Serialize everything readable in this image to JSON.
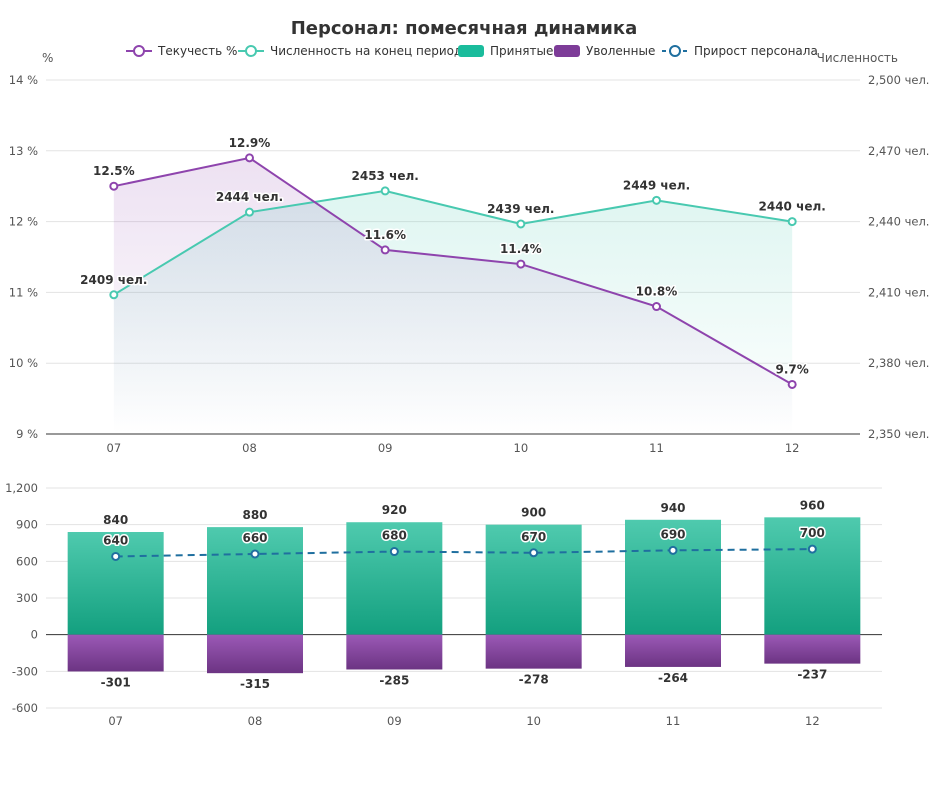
{
  "title": "Персонал: помесячная динамика",
  "legend": [
    {
      "label": "Текучесть %",
      "type": "line-marker",
      "color": "#8e44ad"
    },
    {
      "label": "Численность на конец периода",
      "type": "line-marker",
      "color": "#48c9b0"
    },
    {
      "label": "Принятые",
      "type": "bar",
      "color": "#1abc9c"
    },
    {
      "label": "Уволенные",
      "type": "bar",
      "color": "#7d3c98"
    },
    {
      "label": "Прирост персонала",
      "type": "dashed-marker",
      "color": "#1f6f9f"
    }
  ],
  "colors": {
    "turnover": "#8e44ad",
    "headcount": "#48c9b0",
    "hired_top": "#4fcaae",
    "hired_bottom": "#13a07f",
    "fired_top": "#9b59b6",
    "fired_bottom": "#6c3483",
    "growth": "#1f6f9f",
    "grid": "#e3e3e3",
    "axis": "#333333"
  },
  "chart_data": [
    {
      "type": "line",
      "categories": [
        "07",
        "08",
        "09",
        "10",
        "11",
        "12"
      ],
      "left_axis": {
        "label": "%",
        "min": 9,
        "max": 14,
        "ticks": [
          9,
          10,
          11,
          12,
          13,
          14
        ],
        "tick_labels": [
          "9 %",
          "10 %",
          "11 %",
          "12 %",
          "13 %",
          "14 %"
        ]
      },
      "right_axis": {
        "label": "Численность",
        "min": 2350,
        "max": 2500,
        "ticks": [
          2350,
          2380,
          2410,
          2440,
          2470,
          2500
        ],
        "tick_labels": [
          "2,350 чел.",
          "2,380 чел.",
          "2,410 чел.",
          "2,440 чел.",
          "2,470 чел.",
          "2,500 чел."
        ]
      },
      "grid": true,
      "legend_position": "top",
      "series": [
        {
          "name": "Текучесть %",
          "axis": "left",
          "fill": "area",
          "values": [
            12.5,
            12.9,
            11.6,
            11.4,
            10.8,
            9.7
          ],
          "labels": [
            "12.5%",
            "12.9%",
            "11.6%",
            "11.4%",
            "10.8%",
            "9.7%"
          ]
        },
        {
          "name": "Численность на конец периода",
          "axis": "right",
          "fill": "area",
          "values": [
            2409,
            2444,
            2453,
            2439,
            2449,
            2440
          ],
          "labels": [
            "2409 чел.",
            "2444 чел.",
            "2453 чел.",
            "2439 чел.",
            "2449 чел.",
            "2440 чел."
          ]
        }
      ]
    },
    {
      "type": "bar",
      "categories": [
        "07",
        "08",
        "09",
        "10",
        "11",
        "12"
      ],
      "y_axis": {
        "min": -600,
        "max": 1200,
        "ticks": [
          -600,
          -300,
          0,
          300,
          600,
          900,
          1200
        ],
        "tick_labels": [
          "-600",
          "-300",
          "0",
          "300",
          "600",
          "900",
          "1,200"
        ]
      },
      "grid": true,
      "series": [
        {
          "name": "Принятые",
          "type": "bar",
          "values": [
            840,
            880,
            920,
            900,
            940,
            960
          ]
        },
        {
          "name": "Уволенные",
          "type": "bar",
          "values": [
            -301,
            -315,
            -285,
            -278,
            -264,
            -237
          ]
        },
        {
          "name": "Прирост персонала",
          "type": "dashed-line",
          "values": [
            640,
            660,
            680,
            670,
            690,
            700
          ]
        }
      ]
    }
  ]
}
